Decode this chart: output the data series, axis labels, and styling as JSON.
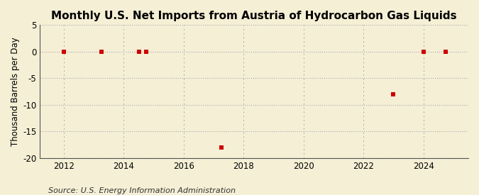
{
  "title": "Monthly U.S. Net Imports from Austria of Hydrocarbon Gas Liquids",
  "ylabel": "Thousand Barrels per Day",
  "source": "Source: U.S. Energy Information Administration",
  "background_color": "#f5efd5",
  "plot_background_color": "#f5efd5",
  "marker_color": "#cc0000",
  "marker_size": 5,
  "marker_style": "s",
  "xlim": [
    2011.2,
    2025.5
  ],
  "ylim": [
    -20,
    5
  ],
  "yticks": [
    5,
    0,
    -5,
    -10,
    -15,
    -20
  ],
  "xticks": [
    2012,
    2014,
    2016,
    2018,
    2020,
    2022,
    2024
  ],
  "data_x": [
    2012.0,
    2013.25,
    2014.5,
    2014.75,
    2017.25,
    2023.0,
    2024.0,
    2024.75
  ],
  "data_y": [
    0,
    0,
    0,
    0,
    -18,
    -8,
    0,
    0
  ],
  "grid_color": "#aaaaaa",
  "title_fontsize": 11,
  "axis_fontsize": 8.5,
  "source_fontsize": 8
}
